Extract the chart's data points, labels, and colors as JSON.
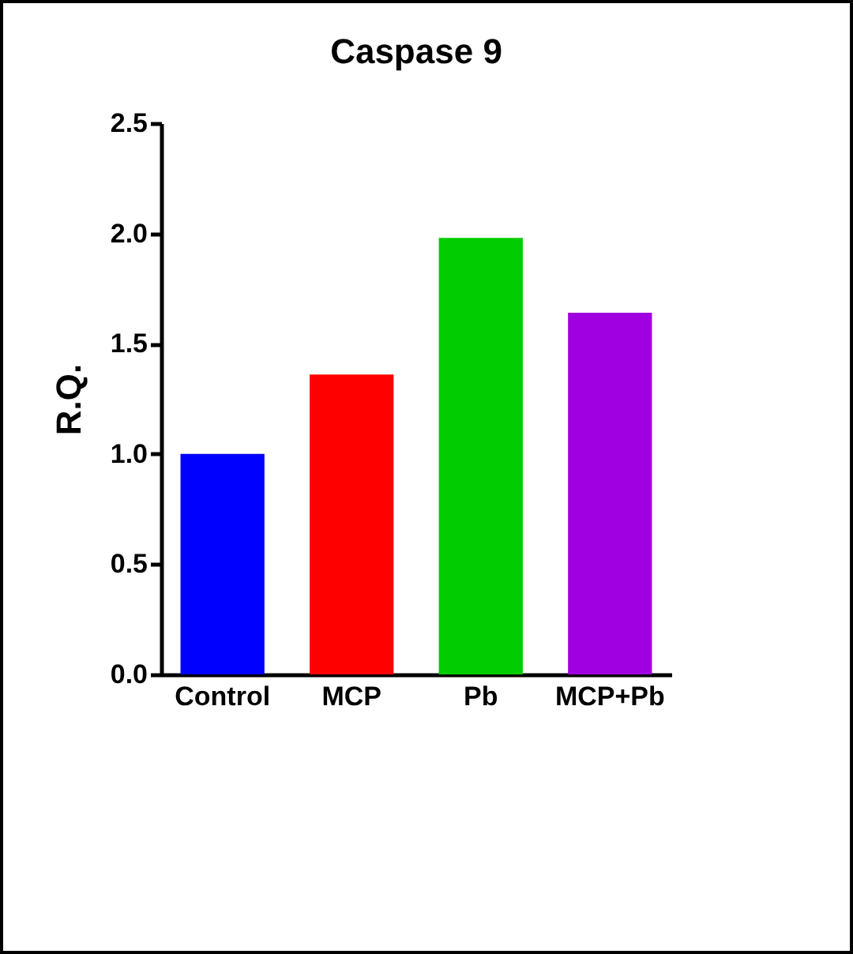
{
  "chart_data": {
    "type": "bar",
    "title": "Caspase 9",
    "ylabel": "R.Q.",
    "categories": [
      "Control",
      "MCP",
      "Pb",
      "MCP+Pb"
    ],
    "values": [
      1.0,
      1.36,
      1.98,
      1.64
    ],
    "colors": [
      "#0000ff",
      "#ff0000",
      "#00cc00",
      "#a000e0"
    ],
    "ylim": [
      0,
      2.5
    ],
    "yticks": [
      {
        "value": 0,
        "label": "0.0"
      },
      0.5,
      {
        "value": 1,
        "label": "1.0"
      },
      1.5,
      {
        "value": 2,
        "label": "2.0"
      },
      2.5
    ],
    "grid": false,
    "legend": false
  }
}
